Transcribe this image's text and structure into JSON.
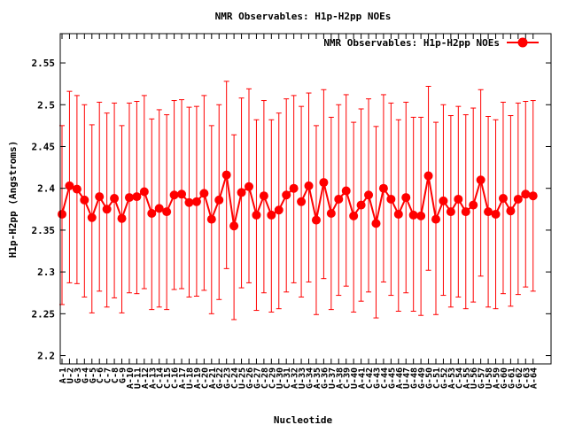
{
  "chart_data": {
    "type": "line",
    "title": "NMR Observables: H1p-H2pp NOEs",
    "xlabel": "Nucleotide",
    "ylabel": "H1p-H2pp (Angstroms)",
    "ylim": [
      2.19,
      2.585
    ],
    "yticks": [
      2.2,
      2.25,
      2.3,
      2.35,
      2.4,
      2.45,
      2.5,
      2.55
    ],
    "ytick_labels": [
      "2.2",
      "2.25",
      "2.3",
      "2.35",
      "2.4",
      "2.45",
      "2.5",
      "2.55"
    ],
    "grid": false,
    "legend_position": "top-right",
    "series": [
      {
        "name": "NMR Observables: H1p-H2pp NOEs",
        "color": "#ff0000",
        "marker": "filled-circle",
        "error_bars": true
      }
    ],
    "segments": [
      {
        "categories": [
          "A-1",
          "U-2",
          "G-3",
          "G-4",
          "G-5",
          "C-6",
          "C-7",
          "C-8",
          "G-9",
          "A-10",
          "U-11",
          "A-12",
          "A-13",
          "C-14",
          "C-15",
          "C-16",
          "A-17",
          "U-18",
          "A-19",
          "C-20",
          "A-21",
          "G-22",
          "G-23",
          "C-24",
          "U-25",
          "G-26",
          "G-27",
          "C-28",
          "C-29",
          "U-30",
          "C-31",
          "A-32"
        ],
        "values": [
          2.369,
          2.403,
          2.399,
          2.386,
          2.365,
          2.39,
          2.375,
          2.388,
          2.364,
          2.389,
          2.39,
          2.396,
          2.37,
          2.376,
          2.372,
          2.392,
          2.393,
          2.383,
          2.384,
          2.394,
          2.363,
          2.386,
          2.416,
          2.355,
          2.395,
          2.402,
          2.368,
          2.391,
          2.368,
          2.374,
          2.392,
          2.4
        ],
        "err_low": [
          2.261,
          2.287,
          2.286,
          2.27,
          2.251,
          2.277,
          2.258,
          2.269,
          2.251,
          2.275,
          2.274,
          2.28,
          2.255,
          2.258,
          2.255,
          2.279,
          2.28,
          2.27,
          2.271,
          2.278,
          2.25,
          2.267,
          2.304,
          2.243,
          2.281,
          2.287,
          2.254,
          2.275,
          2.252,
          2.256,
          2.276,
          2.287
        ],
        "err_high": [
          2.475,
          2.516,
          2.511,
          2.5,
          2.476,
          2.503,
          2.49,
          2.502,
          2.475,
          2.502,
          2.504,
          2.511,
          2.483,
          2.494,
          2.488,
          2.505,
          2.506,
          2.497,
          2.498,
          2.511,
          2.475,
          2.5,
          2.528,
          2.464,
          2.508,
          2.519,
          2.482,
          2.505,
          2.482,
          2.49,
          2.507,
          2.511
        ]
      },
      {
        "categories": [
          "U-33",
          "G-34",
          "A-35",
          "G-36",
          "U-37",
          "A-38",
          "C-39",
          "U-40",
          "A-41",
          "C-42",
          "G-43",
          "C-44",
          "G-45",
          "A-46",
          "U-47",
          "G-48",
          "G-49",
          "G-50",
          "C-51",
          "G-52",
          "A-53",
          "C-54",
          "A-55",
          "U-56",
          "G-57",
          "U-58",
          "A-59",
          "G-60",
          "G-61",
          "G-62",
          "C-63",
          "A-64"
        ],
        "values": [
          2.384,
          2.403,
          2.362,
          2.407,
          2.37,
          2.387,
          2.397,
          2.367,
          2.38,
          2.392,
          2.358,
          2.4,
          2.387,
          2.369,
          2.389,
          2.368,
          2.367,
          2.415,
          2.363,
          2.385,
          2.372,
          2.387,
          2.372,
          2.38,
          2.41,
          2.372,
          2.369,
          2.388,
          2.373,
          2.387,
          2.393,
          2.391
        ],
        "err_low": [
          2.27,
          2.288,
          2.249,
          2.292,
          2.255,
          2.272,
          2.283,
          2.252,
          2.265,
          2.276,
          2.245,
          2.288,
          2.272,
          2.253,
          2.275,
          2.253,
          2.248,
          2.302,
          2.249,
          2.272,
          2.258,
          2.27,
          2.256,
          2.264,
          2.295,
          2.258,
          2.256,
          2.274,
          2.259,
          2.273,
          2.282,
          2.277
        ],
        "err_high": [
          2.498,
          2.514,
          2.475,
          2.518,
          2.485,
          2.5,
          2.512,
          2.479,
          2.495,
          2.507,
          2.474,
          2.512,
          2.502,
          2.482,
          2.503,
          2.485,
          2.485,
          2.522,
          2.479,
          2.5,
          2.487,
          2.498,
          2.488,
          2.496,
          2.518,
          2.486,
          2.482,
          2.503,
          2.487,
          2.502,
          2.504,
          2.505
        ]
      }
    ]
  }
}
